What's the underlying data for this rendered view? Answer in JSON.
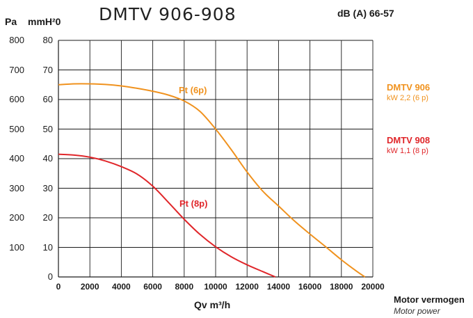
{
  "header": {
    "pa_unit": "Pa",
    "mm_unit": "mmH²0",
    "title": "DMTV 906-908",
    "db": "dB (A) 66-57"
  },
  "pa_ticks": [
    "800",
    "700",
    "600",
    "500",
    "400",
    "300",
    "200",
    "100"
  ],
  "mm_ticks": [
    "80",
    "70",
    "60",
    "50",
    "40",
    "30",
    "20",
    "10",
    "0"
  ],
  "x_ticks": [
    "0",
    "2000",
    "4000",
    "6000",
    "8000",
    "10000",
    "12000",
    "14000",
    "16000",
    "18000",
    "20000"
  ],
  "colors": {
    "dmtv906": "#f0921e",
    "dmtv908": "#e0262a",
    "grid": "#1a1a1a"
  },
  "legend": {
    "dmtv906_name": "DMTV 906",
    "dmtv906_power": "kW 2,2 (6 p)",
    "dmtv908_name": "DMTV 908",
    "dmtv908_power": "kW 1,1 (8 p)"
  },
  "footer": {
    "motor_vermogen": "Motor vermogen",
    "motor_power": "Motor power"
  },
  "chart_data": {
    "type": "line",
    "title": "DMTV 906-908",
    "xlabel": "Qv m³/h",
    "ylabel": "mmH²0",
    "xlim": [
      0,
      20000
    ],
    "ylim": [
      0,
      80
    ],
    "grid": true,
    "series": [
      {
        "name": "Pt (6p)",
        "color": "#f0921e",
        "x": [
          0,
          1000,
          2000,
          3000,
          4000,
          5000,
          6000,
          7000,
          8000,
          9000,
          10000,
          11000,
          12000,
          13000,
          14000,
          15000,
          16000,
          17000,
          18000,
          19000,
          19500
        ],
        "y": [
          65,
          65.3,
          65.3,
          65.1,
          64.6,
          63.8,
          62.8,
          61.5,
          59.5,
          56,
          50,
          43,
          35.5,
          29,
          24,
          19,
          14.5,
          10.2,
          5.8,
          1.8,
          0
        ]
      },
      {
        "name": "Pt (8p)",
        "color": "#e0262a",
        "x": [
          0,
          1000,
          2000,
          3000,
          4000,
          5000,
          6000,
          7000,
          8000,
          9000,
          10000,
          11000,
          12000,
          13000,
          13800
        ],
        "y": [
          41.5,
          41.2,
          40.5,
          39.2,
          37.3,
          34.8,
          30.7,
          25.2,
          19.5,
          14.4,
          10.2,
          6.8,
          4.1,
          1.8,
          0
        ]
      }
    ]
  }
}
